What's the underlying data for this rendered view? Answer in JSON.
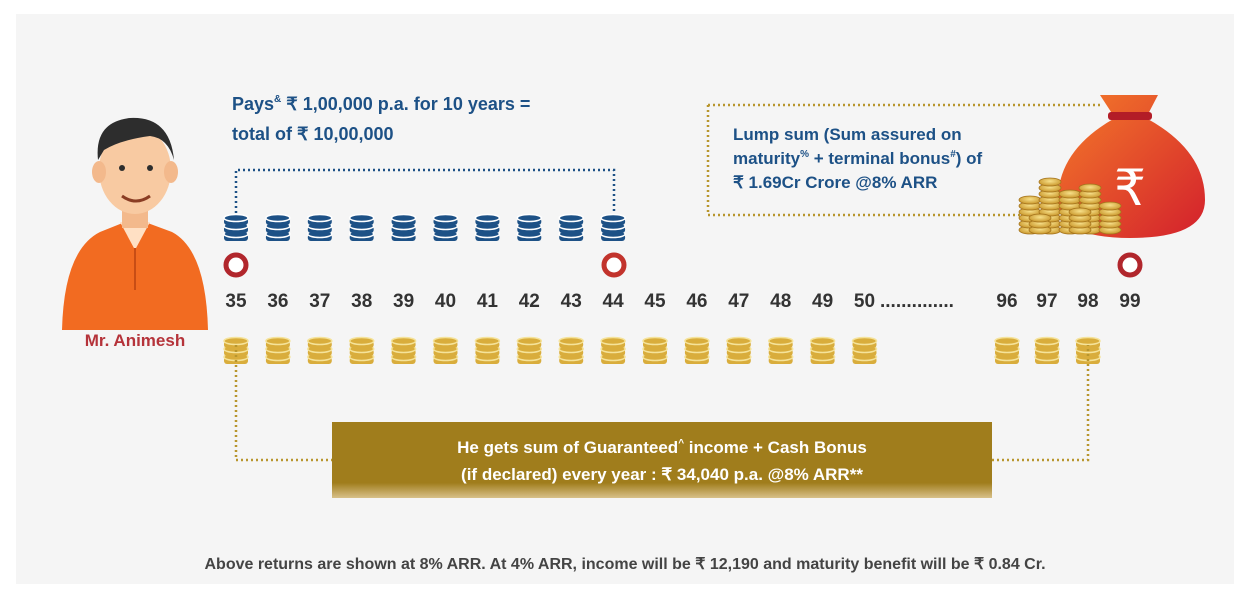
{
  "pays": {
    "line1_a": "Pays",
    "line1_sup": "&",
    "line1_b": " ₹ 1,00,000 p.a. for 10 years =",
    "line2": "total of ₹ 10,00,000"
  },
  "lump_sum": {
    "line1": "Lump sum (Sum assured on",
    "line2_a": "maturity",
    "line2_sup1": "%",
    "line2_b": " + terminal bonus",
    "line2_sup2": "#",
    "line2_c": ") of",
    "line3": "₹ 1.69Cr Crore @8% ARR"
  },
  "bag_symbol": "₹",
  "person": "Mr. Animesh",
  "ages_start": [
    "35",
    "36",
    "37",
    "38",
    "39",
    "40",
    "41",
    "42",
    "43",
    "44",
    "45",
    "46",
    "47",
    "48",
    "49",
    "50"
  ],
  "ellipsis": "..............",
  "ages_end": [
    "96",
    "97",
    "98",
    "99"
  ],
  "income": {
    "line1_a": "He gets sum of Guaranteed",
    "line1_sup": "^",
    "line1_b": " income + Cash Bonus",
    "line2": "(if declared) every year : ₹ 34,040 p.a. @8% ARR**"
  },
  "footer": "Above returns are shown at 8% ARR. At 4% ARR, income will be ₹ 12,190 and maturity benefit will be ₹ 0.84 Cr."
}
